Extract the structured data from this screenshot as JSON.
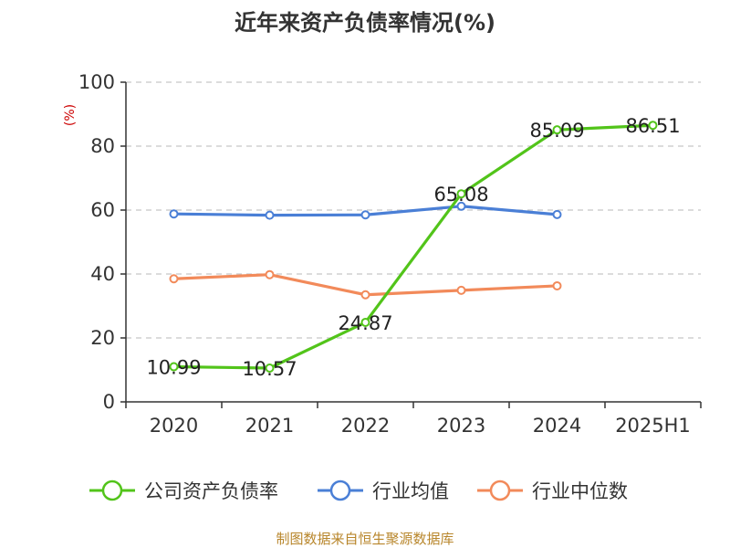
{
  "chart_data": {
    "type": "line",
    "title": "近年来资产负债率情况(%)",
    "ylabel": "(%)",
    "ylim": [
      0,
      100
    ],
    "yticks": [
      0,
      20,
      40,
      60,
      80,
      100
    ],
    "categories": [
      "2020",
      "2021",
      "2022",
      "2023",
      "2024",
      "2025H1"
    ],
    "grid": true,
    "legend_position": "bottom",
    "series": [
      {
        "name": "公司资产负债率",
        "color": "#52c41a",
        "values": [
          10.99,
          10.57,
          24.87,
          65.08,
          85.09,
          86.51
        ],
        "labels": [
          "10.99",
          "10.57",
          "24.87",
          "65.08",
          "85.09",
          "86.51"
        ]
      },
      {
        "name": "行业均值",
        "color": "#4a7fd6",
        "values": [
          58.8,
          58.4,
          58.5,
          61.2,
          58.6,
          null
        ]
      },
      {
        "name": "行业中位数",
        "color": "#f28a5a",
        "values": [
          38.5,
          39.8,
          33.5,
          34.9,
          36.3,
          null
        ]
      }
    ],
    "source": "制图数据来自恒生聚源数据库"
  }
}
